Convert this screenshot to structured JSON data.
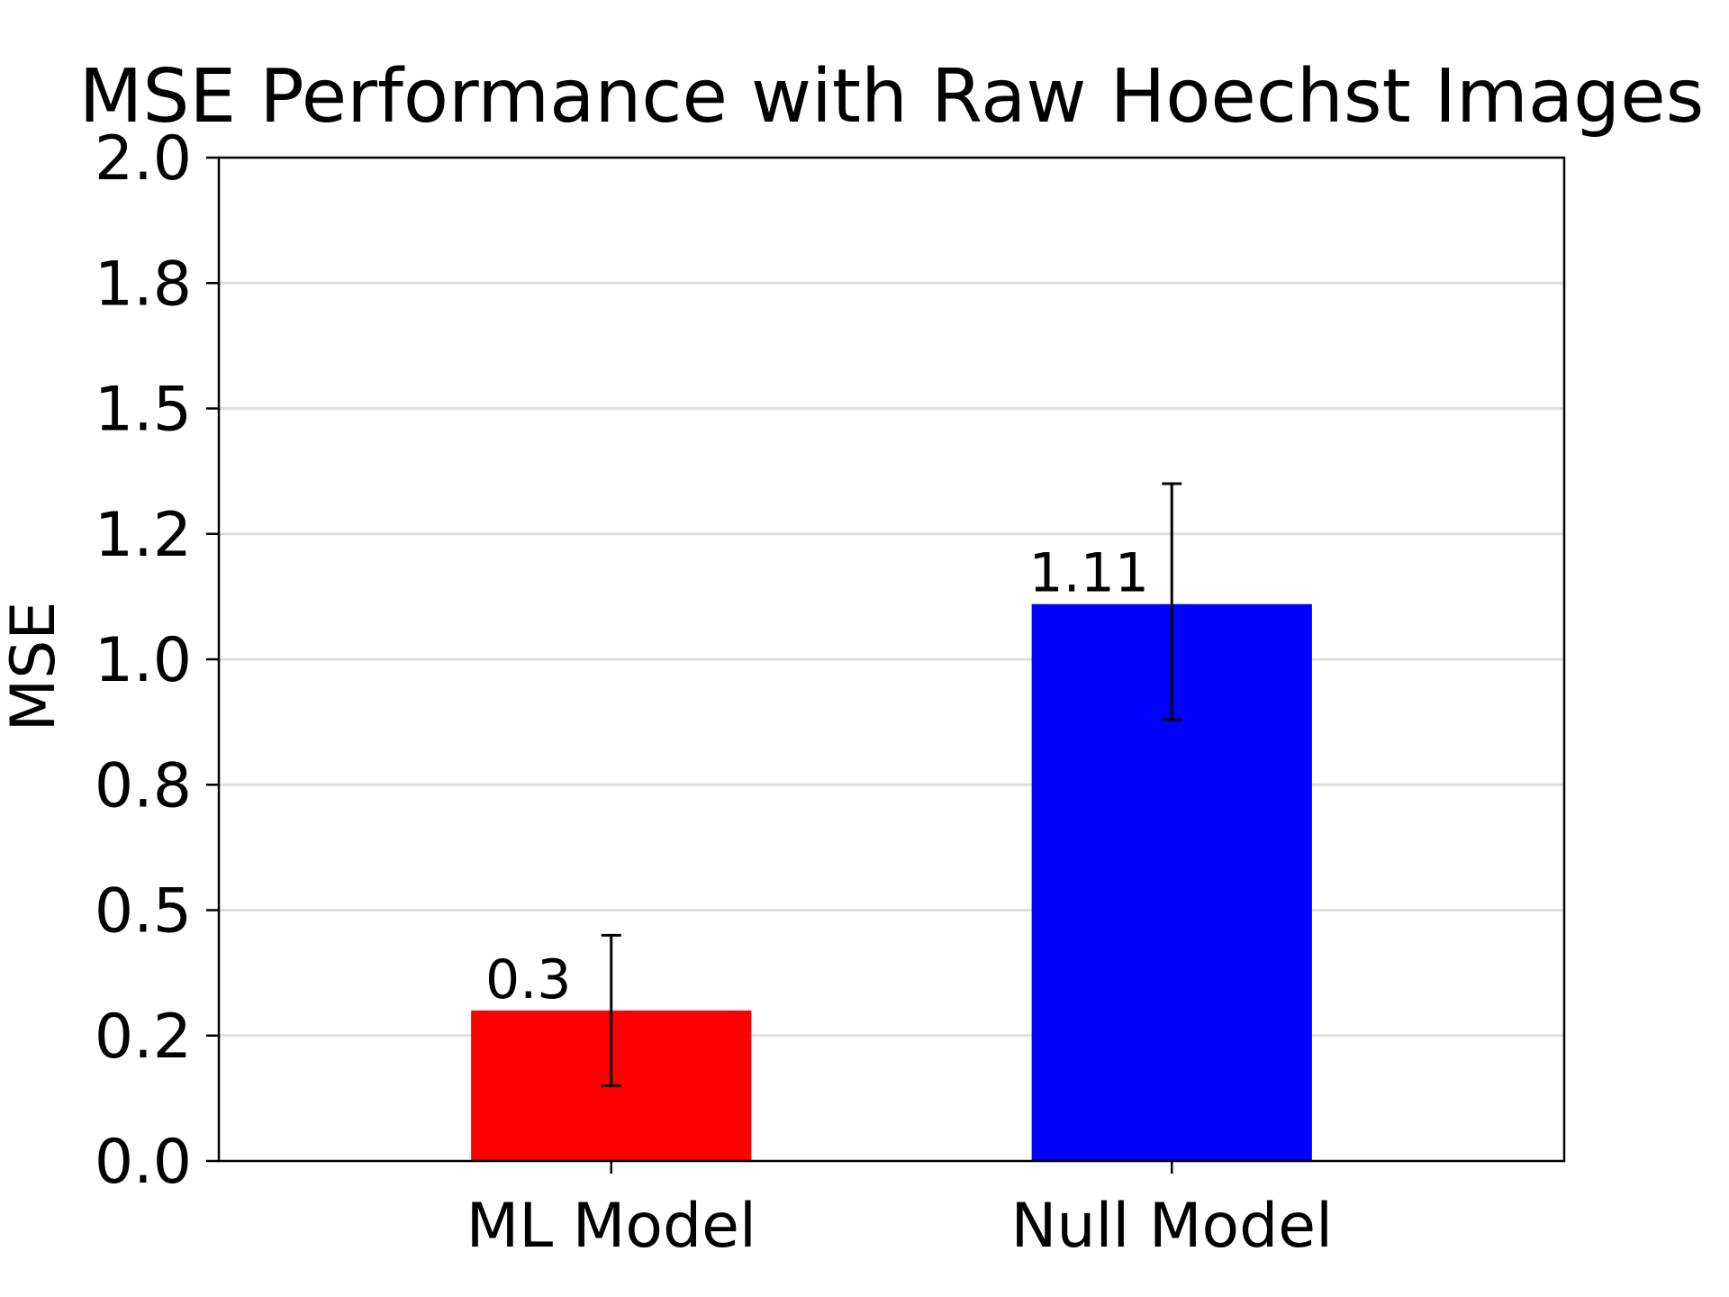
{
  "chart_data": {
    "type": "bar",
    "title": "MSE Performance with Raw Hoechst Images",
    "xlabel": "",
    "ylabel": "MSE",
    "categories": [
      "ML Model",
      "Null Model"
    ],
    "values": [
      0.3,
      1.11
    ],
    "error_bars": [
      {
        "low": 0.15,
        "high": 0.45
      },
      {
        "low": 0.88,
        "high": 1.35
      }
    ],
    "bar_colors": [
      "#ff0000",
      "#0000ff"
    ],
    "data_labels": [
      "0.3",
      "1.11"
    ],
    "ylim": [
      0.0,
      2.0
    ],
    "yticks": [
      0.0,
      0.25,
      0.5,
      0.75,
      1.0,
      1.25,
      1.5,
      1.75,
      2.0
    ],
    "ytick_labels": [
      "0.0",
      "0.2",
      "0.5",
      "0.8",
      "1.0",
      "1.2",
      "1.5",
      "1.8",
      "2.0"
    ],
    "grid": "horizontal",
    "legend": "none"
  }
}
